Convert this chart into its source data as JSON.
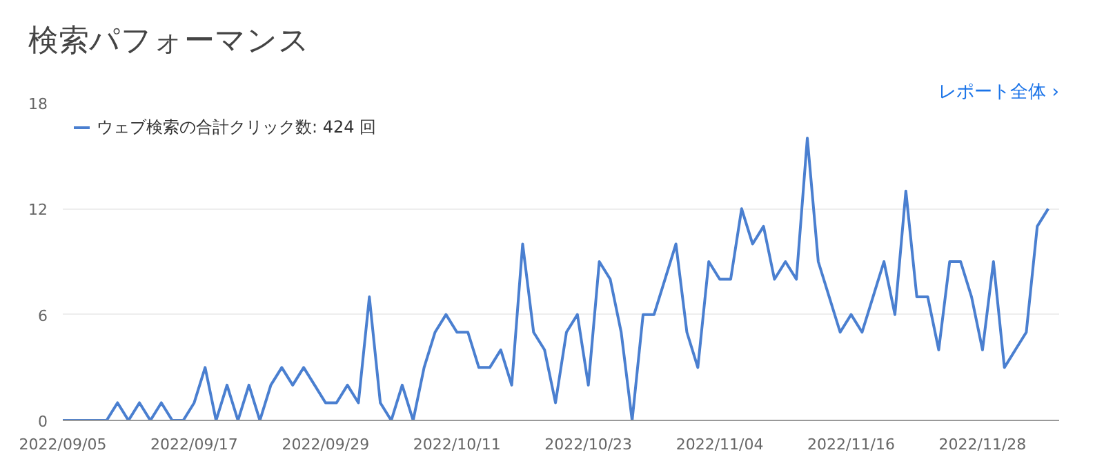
{
  "chart_data": {
    "type": "line",
    "title": "検索パフォーマンス",
    "annotations": [
      "レポート全体 ›"
    ],
    "x": [
      "2022-09-05",
      "2022-09-06",
      "2022-09-07",
      "2022-09-08",
      "2022-09-09",
      "2022-09-10",
      "2022-09-11",
      "2022-09-12",
      "2022-09-13",
      "2022-09-14",
      "2022-09-15",
      "2022-09-16",
      "2022-09-17",
      "2022-09-18",
      "2022-09-19",
      "2022-09-20",
      "2022-09-21",
      "2022-09-22",
      "2022-09-23",
      "2022-09-24",
      "2022-09-25",
      "2022-09-26",
      "2022-09-27",
      "2022-09-28",
      "2022-09-29",
      "2022-09-30",
      "2022-10-01",
      "2022-10-02",
      "2022-10-03",
      "2022-10-04",
      "2022-10-05",
      "2022-10-06",
      "2022-10-07",
      "2022-10-08",
      "2022-10-09",
      "2022-10-10",
      "2022-10-11",
      "2022-10-12",
      "2022-10-13",
      "2022-10-14",
      "2022-10-15",
      "2022-10-16",
      "2022-10-17",
      "2022-10-18",
      "2022-10-19",
      "2022-10-20",
      "2022-10-21",
      "2022-10-22",
      "2022-10-23",
      "2022-10-24",
      "2022-10-25",
      "2022-10-26",
      "2022-10-27",
      "2022-10-28",
      "2022-10-29",
      "2022-10-30",
      "2022-10-31",
      "2022-11-01",
      "2022-11-02",
      "2022-11-03",
      "2022-11-04",
      "2022-11-05",
      "2022-11-06",
      "2022-11-07",
      "2022-11-08",
      "2022-11-09",
      "2022-11-10",
      "2022-11-11",
      "2022-11-12",
      "2022-11-13",
      "2022-11-14",
      "2022-11-15",
      "2022-11-16",
      "2022-11-17",
      "2022-11-18",
      "2022-11-19",
      "2022-11-20",
      "2022-11-21",
      "2022-11-22",
      "2022-11-23",
      "2022-11-24",
      "2022-11-25",
      "2022-11-26",
      "2022-11-27",
      "2022-11-28",
      "2022-11-29",
      "2022-11-30",
      "2022-12-01",
      "2022-12-02",
      "2022-12-03",
      "2022-12-04"
    ],
    "series": [
      {
        "name": "ウェブ検索の合計クリック数: 424 回",
        "color": "#4a7fd0",
        "values": [
          0,
          0,
          0,
          0,
          0,
          1,
          0,
          1,
          0,
          1,
          0,
          0,
          1,
          3,
          0,
          2,
          0,
          2,
          0,
          2,
          3,
          2,
          3,
          2,
          1,
          1,
          2,
          1,
          7,
          1,
          0,
          2,
          0,
          3,
          5,
          6,
          5,
          5,
          3,
          3,
          4,
          2,
          10,
          5,
          4,
          1,
          5,
          6,
          2,
          9,
          8,
          5,
          0,
          6,
          6,
          8,
          10,
          5,
          3,
          9,
          8,
          8,
          12,
          10,
          11,
          8,
          9,
          8,
          16,
          9,
          7,
          5,
          6,
          5,
          7,
          9,
          6,
          13,
          7,
          7,
          4,
          9,
          9,
          7,
          4,
          9,
          3,
          4,
          5,
          11,
          12
        ]
      }
    ],
    "xlim": [
      "2022-09-05",
      "2022-12-05"
    ],
    "xticks": [
      {
        "value": "2022-09-05",
        "label": "2022/09/05"
      },
      {
        "value": "2022-09-17",
        "label": "2022/09/17"
      },
      {
        "value": "2022-09-29",
        "label": "2022/09/29"
      },
      {
        "value": "2022-10-11",
        "label": "2022/10/11"
      },
      {
        "value": "2022-10-23",
        "label": "2022/10/23"
      },
      {
        "value": "2022-11-04",
        "label": "2022/11/04"
      },
      {
        "value": "2022-11-16",
        "label": "2022/11/16"
      },
      {
        "value": "2022-11-28",
        "label": "2022/11/28"
      }
    ],
    "ylim": [
      0,
      18
    ],
    "yticks": [
      0,
      6,
      12,
      18
    ],
    "grid": "y",
    "legend": "top left",
    "marker": "none",
    "line_style": "solid"
  }
}
